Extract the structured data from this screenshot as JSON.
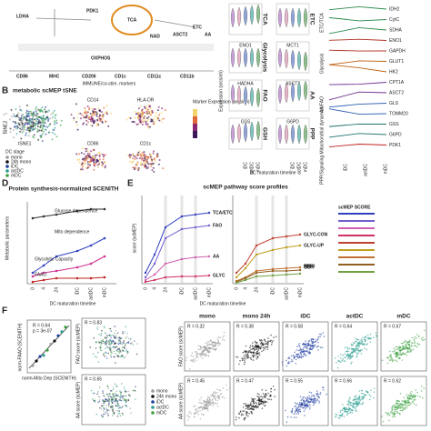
{
  "panel_a": {
    "genes": [
      "LDHA",
      "TCA",
      "ETC",
      "OXPHOS",
      "AA",
      "ASCT2",
      "NAD",
      "PDK1"
    ],
    "markers": [
      "CD86",
      "MHC",
      "CD206",
      "CD1c",
      "CD11c",
      "CD11b"
    ],
    "footer": "IMMUNE/co-stim. markers"
  },
  "panel_b": {
    "letter": "B",
    "title": "metabolic scMEP tSNE",
    "maps": [
      "CD14",
      "HLA-DR",
      "CD86",
      "CD1c"
    ],
    "x_axis": "tSNE1",
    "y_axis": "tSNE2",
    "color_label": "Marker Expression (arcsinh)",
    "legend_title": "DC stage",
    "legend": [
      "mono",
      "24h mono",
      "iDC",
      "actDC",
      "mDC"
    ]
  },
  "panel_c": {
    "y_axis": "Expression (arcsinh)",
    "x_axis": "DC maturation timeline",
    "rows": [
      {
        "left": "TCA",
        "right": "ETC",
        "left_gene": "",
        "right_gene": ""
      },
      {
        "left": "Glycolysis",
        "right": "",
        "left_gene": "ENO1",
        "right_gene": "MCT1"
      },
      {
        "left": "FAO",
        "right": "AA",
        "left_gene": "HADHA",
        "right_gene": "ASCT2"
      },
      {
        "left": "GSH",
        "right": "PPP",
        "left_gene": "GSS",
        "right_gene": "G6PD"
      }
    ],
    "ticks": [
      "iDC",
      "actDC",
      "mDC"
    ]
  },
  "panel_r": {
    "groups": [
      "ETC/TCA",
      "Glycolysis",
      "AA/FAO",
      "PPP/Signaling Mitochondrial dynamics"
    ],
    "genes": [
      "IDH2",
      "CytC",
      "SDHA",
      "ENO1",
      "GAPDH",
      "GLUT1",
      "HK2",
      "CPT1A",
      "ASCT2",
      "GLS",
      "TOMM20",
      "GSS",
      "G6PD",
      "PDK1"
    ],
    "ticks": [
      "iDC",
      "actDC",
      "mDC"
    ]
  },
  "panel_d": {
    "letter": "D",
    "title": "Protein synthesis-normalized SCENITH",
    "y_axis": "Metabolic parameters",
    "x_axis": "DC maturation timeline",
    "series": [
      "Glucose dependence",
      "Mito dependence",
      "Glycolytic Capacity",
      "FAAO"
    ],
    "ticks": [
      "0",
      "4",
      "24",
      "iDC",
      "actDC",
      "mDC"
    ]
  },
  "panel_e": {
    "letter": "E",
    "title": "scMEP pathway score profiles",
    "y_axis": "score (scMEP)",
    "x_axis": "DC maturation timeline",
    "left_series": [
      "TCA/ETC",
      "FAO",
      "AA",
      "GLYC"
    ],
    "right_series": [
      "GLYC-CON",
      "GLYC-UP",
      "GSH",
      "MITO",
      "PPP"
    ],
    "legend_title": "scMEP SCORE",
    "ticks": [
      "0",
      "4",
      "24",
      "iDC",
      "actDC",
      "mDC"
    ]
  },
  "panel_f": {
    "letter": "F",
    "corr": "R = 0.64",
    "p": "p = 3e-07",
    "x_axis": "norm-Mito Dep (SCENITH)",
    "y_axis": "norm-FAAO (SCENITH)",
    "panels": [
      "mono",
      "mono 24h",
      "iDC",
      "actDC",
      "mDC"
    ],
    "fao_r": [
      "R = 0.32",
      "R = 0.38",
      "R = 0.58",
      "R = 0.64",
      "R = 0.67"
    ],
    "aa_r": [
      "R = 0.45",
      "R = 0.47",
      "R = 0.55",
      "R = 0.66",
      "R = 0.62"
    ],
    "fao_label": "FAO score (scMEP)",
    "aa_label": "AA score (scMEP)",
    "overview_r": [
      "R = 0.83",
      "R = 0.65"
    ]
  }
}
